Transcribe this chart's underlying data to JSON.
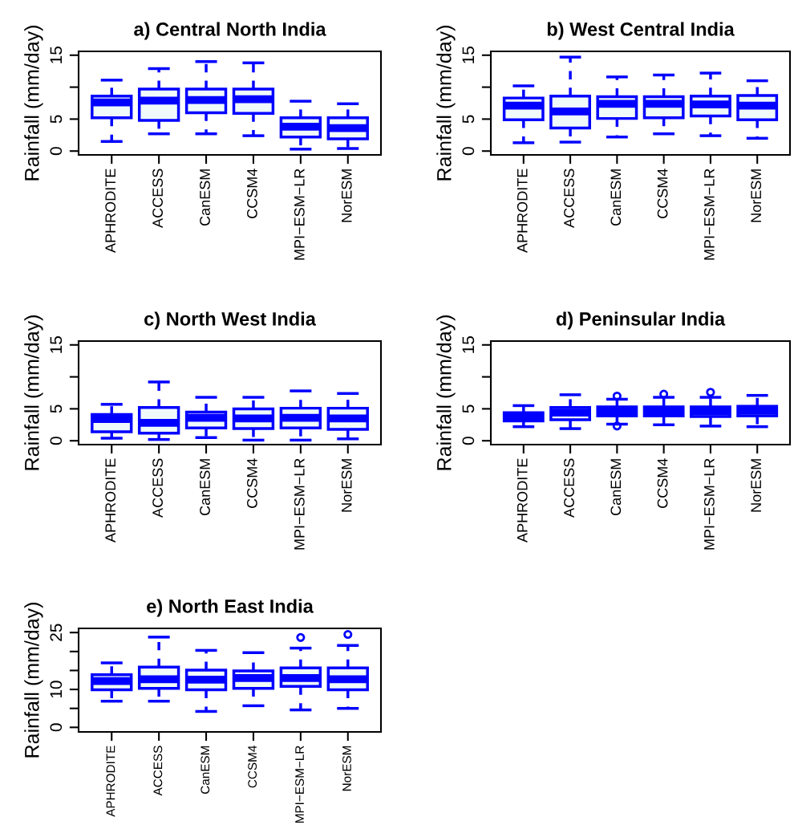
{
  "chart_data": [
    {
      "type": "box",
      "title": "a) Central North India",
      "ylabel": "Rainfall (mm/day)",
      "categories": [
        "APHRODITE",
        "ACCESS",
        "CanESM",
        "CCSM4",
        "MPI−ESM−LR",
        "NorESM"
      ],
      "ylim": [
        -0.6,
        15.6
      ],
      "yticks": [
        0,
        5,
        {
          "value": 10,
          "label": null
        },
        15
      ],
      "grid": false,
      "legend": false,
      "series": [
        {
          "color": "#0000ff",
          "boxes": [
            {
              "low": 1.5,
              "q1": 5.2,
              "median": 7.6,
              "q3": 8.6,
              "high": 11.1
            },
            {
              "low": 2.7,
              "q1": 4.8,
              "median": 7.9,
              "q3": 9.7,
              "high": 12.9
            },
            {
              "low": 2.7,
              "q1": 6.0,
              "median": 8.0,
              "q3": 9.7,
              "high": 14.0
            },
            {
              "low": 2.4,
              "q1": 5.9,
              "median": 8.1,
              "q3": 9.7,
              "high": 13.8
            },
            {
              "low": 0.3,
              "q1": 2.2,
              "median": 3.8,
              "q3": 5.2,
              "high": 7.8
            },
            {
              "low": 0.4,
              "q1": 1.9,
              "median": 3.6,
              "q3": 5.2,
              "high": 7.4
            }
          ]
        }
      ]
    },
    {
      "type": "box",
      "title": "b) West Central India",
      "ylabel": "Rainfall (mm/day)",
      "categories": [
        "APHRODITE",
        "ACCESS",
        "CanESM",
        "CCSM4",
        "MPI−ESM−LR",
        "NorESM"
      ],
      "ylim": [
        -0.6,
        15.6
      ],
      "yticks": [
        0,
        5,
        {
          "value": 10,
          "label": null
        },
        15
      ],
      "grid": false,
      "legend": false,
      "series": [
        {
          "color": "#0000ff",
          "boxes": [
            {
              "low": 1.3,
              "q1": 4.9,
              "median": 7.1,
              "q3": 8.3,
              "high": 10.2
            },
            {
              "low": 1.4,
              "q1": 3.6,
              "median": 6.2,
              "q3": 8.6,
              "high": 14.7
            },
            {
              "low": 2.2,
              "q1": 5.1,
              "median": 7.4,
              "q3": 8.5,
              "high": 11.6
            },
            {
              "low": 2.7,
              "q1": 5.2,
              "median": 7.4,
              "q3": 8.5,
              "high": 11.9
            },
            {
              "low": 2.4,
              "q1": 5.5,
              "median": 7.3,
              "q3": 8.6,
              "high": 12.2
            },
            {
              "low": 2.0,
              "q1": 4.9,
              "median": 7.1,
              "q3": 8.7,
              "high": 11.0
            }
          ]
        }
      ]
    },
    {
      "type": "box",
      "title": "c) North West India",
      "ylabel": "Rainfall (mm/day)",
      "categories": [
        "APHRODITE",
        "ACCESS",
        "CanESM",
        "CCSM4",
        "MPI−ESM−LR",
        "NorESM"
      ],
      "ylim": [
        -0.6,
        15.6
      ],
      "yticks": [
        0,
        5,
        {
          "value": 10,
          "label": null
        },
        15
      ],
      "grid": false,
      "legend": false,
      "series": [
        {
          "color": "#0000ff",
          "boxes": [
            {
              "low": 0.4,
              "q1": 1.4,
              "median": 3.4,
              "q3": 4.1,
              "high": 5.7
            },
            {
              "low": 0.2,
              "q1": 1.2,
              "median": 2.8,
              "q3": 5.2,
              "high": 9.2
            },
            {
              "low": 0.5,
              "q1": 2.0,
              "median": 3.6,
              "q3": 4.5,
              "high": 6.8
            },
            {
              "low": 0.1,
              "q1": 1.9,
              "median": 3.5,
              "q3": 5.0,
              "high": 6.8
            },
            {
              "low": 0.1,
              "q1": 2.0,
              "median": 3.6,
              "q3": 5.1,
              "high": 7.8
            },
            {
              "low": 0.3,
              "q1": 1.8,
              "median": 3.5,
              "q3": 5.1,
              "high": 7.4
            }
          ]
        }
      ]
    },
    {
      "type": "box",
      "title": "d) Peninsular India",
      "ylabel": "Rainfall (mm/day)",
      "categories": [
        "APHRODITE",
        "ACCESS",
        "CanESM",
        "CCSM4",
        "MPI−ESM−LR",
        "NorESM"
      ],
      "ylim": [
        -0.6,
        15.6
      ],
      "yticks": [
        0,
        5,
        {
          "value": 10,
          "label": null
        },
        15
      ],
      "grid": false,
      "legend": false,
      "series": [
        {
          "color": "#0000ff",
          "boxes": [
            {
              "low": 2.2,
              "q1": 3.1,
              "median": 3.8,
              "q3": 4.4,
              "high": 5.5
            },
            {
              "low": 1.9,
              "q1": 3.3,
              "median": 4.4,
              "q3": 5.2,
              "high": 7.2
            },
            {
              "low": 2.6,
              "q1": 3.9,
              "median": 4.6,
              "q3": 5.3,
              "high": 6.5,
              "outliers": [
                7.0,
                2.3
              ]
            },
            {
              "low": 2.5,
              "q1": 3.9,
              "median": 4.6,
              "q3": 5.3,
              "high": 6.8,
              "outliers": [
                7.3
              ]
            },
            {
              "low": 2.3,
              "q1": 3.8,
              "median": 4.6,
              "q3": 5.3,
              "high": 6.8,
              "outliers": [
                7.6
              ]
            },
            {
              "low": 2.2,
              "q1": 3.9,
              "median": 4.7,
              "q3": 5.4,
              "high": 7.1
            }
          ]
        }
      ]
    },
    {
      "type": "box",
      "title": "e) North East India",
      "ylabel": "Rainfall (mm/day)",
      "categories": [
        "APHRODITE",
        "ACCESS",
        "CanESM",
        "CCSM4",
        "MPI−ESM−LR",
        "NorESM"
      ],
      "ylim": [
        -1.2,
        26.1
      ],
      "yticks": [
        0,
        {
          "value": 5,
          "label": null
        },
        10,
        {
          "value": 15,
          "label": null
        },
        {
          "value": 20,
          "label": null
        },
        25
      ],
      "grid": false,
      "legend": false,
      "series": [
        {
          "color": "#0000ff",
          "boxes": [
            {
              "low": 6.9,
              "q1": 9.9,
              "median": 12.2,
              "q3": 13.9,
              "high": 17.0
            },
            {
              "low": 6.9,
              "q1": 10.3,
              "median": 12.7,
              "q3": 15.9,
              "high": 23.8
            },
            {
              "low": 4.2,
              "q1": 9.9,
              "median": 12.6,
              "q3": 15.1,
              "high": 20.3
            },
            {
              "low": 5.7,
              "q1": 10.3,
              "median": 13.0,
              "q3": 14.9,
              "high": 19.7
            },
            {
              "low": 4.6,
              "q1": 10.8,
              "median": 13.0,
              "q3": 15.7,
              "high": 20.9,
              "outliers": [
                23.7
              ]
            },
            {
              "low": 5.0,
              "q1": 9.9,
              "median": 12.7,
              "q3": 15.7,
              "high": 21.6,
              "outliers": [
                24.5
              ]
            }
          ]
        }
      ]
    }
  ]
}
